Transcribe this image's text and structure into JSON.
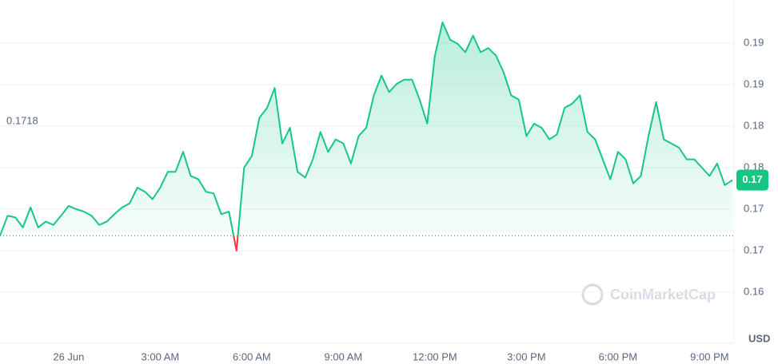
{
  "chart_data": {
    "type": "line",
    "color": "#16c784",
    "down_color": "#ea3943",
    "unit": "USD",
    "watermark": "CoinMarketCap",
    "baseline": 0.1718,
    "price_tag": "0.17",
    "categories": [
      null,
      null,
      null,
      null,
      null,
      null,
      null,
      null,
      null,
      "26 Jun",
      null,
      null,
      null,
      null,
      null,
      null,
      null,
      null,
      null,
      null,
      null,
      "3:00 AM",
      null,
      null,
      null,
      null,
      null,
      null,
      null,
      null,
      null,
      null,
      null,
      "6:00 AM",
      null,
      null,
      null,
      null,
      null,
      null,
      null,
      null,
      null,
      null,
      null,
      "9:00 AM",
      null,
      null,
      null,
      null,
      null,
      null,
      null,
      null,
      null,
      null,
      null,
      "12:00 PM",
      null,
      null,
      null,
      null,
      null,
      null,
      null,
      null,
      null,
      null,
      null,
      "3:00 PM",
      null,
      null,
      null,
      null,
      null,
      null,
      null,
      null,
      null,
      null,
      null,
      "6:00 PM",
      null,
      null,
      null,
      null,
      null,
      null,
      null,
      null,
      null,
      null,
      null,
      "9:00 PM",
      null,
      null,
      null
    ],
    "values": [
      0.1718,
      0.1742,
      0.174,
      0.1728,
      0.1752,
      0.1728,
      0.1735,
      0.1731,
      0.1742,
      0.1754,
      0.175,
      0.1747,
      0.1742,
      0.1731,
      0.1735,
      0.1744,
      0.1752,
      0.1757,
      0.1776,
      0.1771,
      0.1762,
      0.1776,
      0.1795,
      0.1795,
      0.1819,
      0.179,
      0.1786,
      0.1771,
      0.1769,
      0.1744,
      0.1747,
      0.17,
      0.18,
      0.1814,
      0.186,
      0.1872,
      0.1896,
      0.1829,
      0.1848,
      0.1795,
      0.1788,
      0.181,
      0.1843,
      0.1819,
      0.1834,
      0.1829,
      0.1805,
      0.1838,
      0.1848,
      0.1887,
      0.1911,
      0.1891,
      0.1901,
      0.1906,
      0.1906,
      0.1882,
      0.1853,
      0.1935,
      0.1975,
      0.1954,
      0.1949,
      0.1939,
      0.1959,
      0.1939,
      0.1944,
      0.1935,
      0.1915,
      0.1887,
      0.1882,
      0.1838,
      0.1853,
      0.1848,
      0.1834,
      0.184,
      0.1872,
      0.1877,
      0.1887,
      0.1843,
      0.1834,
      0.181,
      0.1786,
      0.1819,
      0.181,
      0.1781,
      0.179,
      0.1838,
      0.1879,
      0.1834,
      0.1829,
      0.1824,
      0.181,
      0.181,
      0.18,
      0.179,
      0.1805,
      0.1779,
      0.1785
    ],
    "ylim": [
      0.15885,
      0.20019
    ],
    "yticks": [
      {
        "value": 0.165,
        "label": "0.16"
      },
      {
        "value": 0.17,
        "label": "0.17"
      },
      {
        "value": 0.175,
        "label": "0.17"
      },
      {
        "value": 0.18,
        "label": "0.18"
      },
      {
        "value": 0.185,
        "label": "0.18"
      },
      {
        "value": 0.19,
        "label": "0.19"
      },
      {
        "value": 0.195,
        "label": "0.19"
      }
    ],
    "grid": true
  }
}
